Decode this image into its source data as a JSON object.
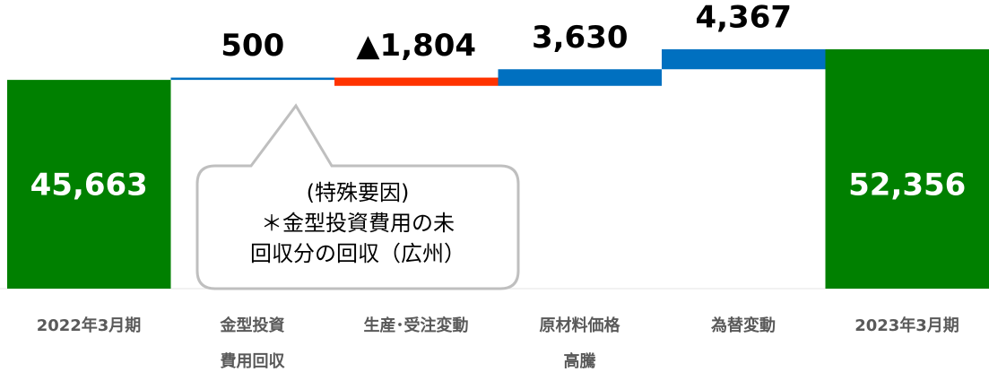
{
  "chart_data": {
    "type": "waterfall",
    "categories": [
      "2022年3月期",
      "金型投資\n費用回収",
      "生産･受注変動",
      "原材料価格\n高騰",
      "為替変動",
      "2023年3月期"
    ],
    "values": [
      45663,
      500,
      -1804,
      3630,
      4367,
      52356
    ],
    "value_labels": [
      "45,663",
      "500",
      "▲1,804",
      "3,630",
      "4,367",
      "52,356"
    ],
    "colors": [
      "#008000",
      "#0070c0",
      "#ff3300",
      "#0070c0",
      "#0070c0",
      "#008000"
    ],
    "ylim": [
      0,
      60000
    ],
    "annotation": "(特殊要因)\n＊金型投資費用の未\n回収分の回収（広州）"
  }
}
